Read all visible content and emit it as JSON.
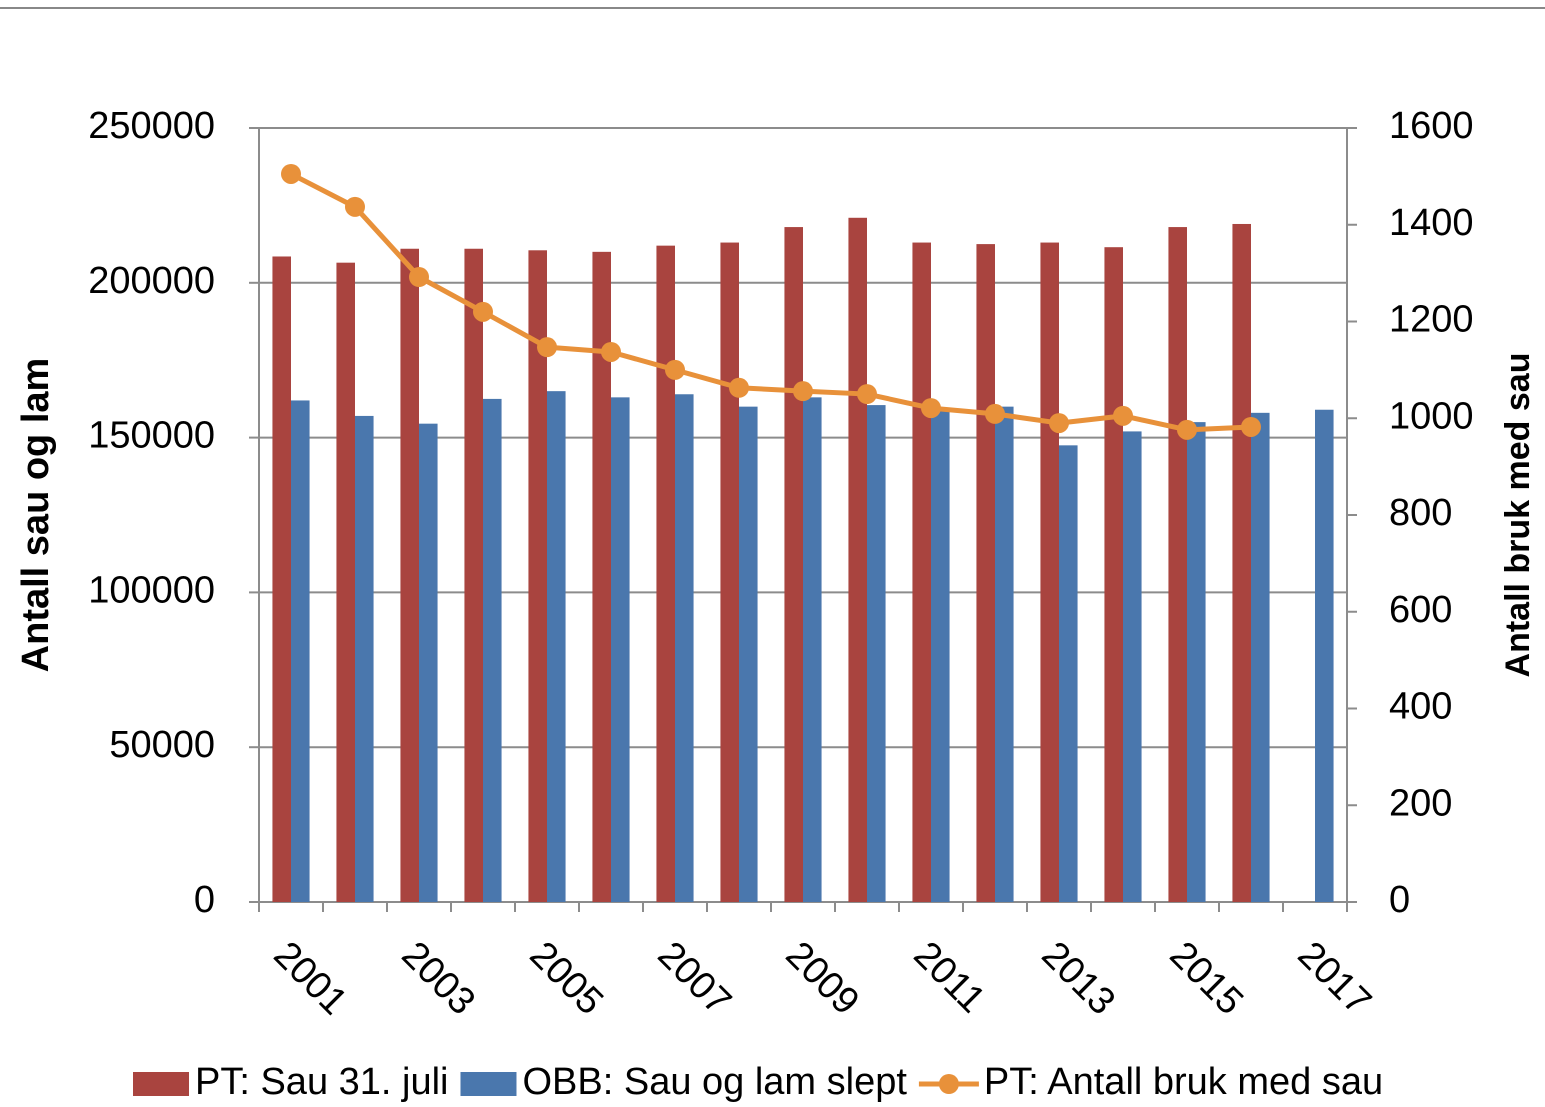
{
  "chart_data": {
    "type": "bar",
    "categories": [
      "2001",
      null,
      "2003",
      null,
      "2005",
      null,
      "2007",
      null,
      "2009",
      null,
      "2011",
      null,
      "2013",
      null,
      "2015",
      null,
      "2017"
    ],
    "y_label": "Antall sau og lam",
    "y2_label": "Antall bruk med sau",
    "ylim": [
      0,
      250000
    ],
    "yticks": [
      0,
      50000,
      100000,
      150000,
      200000,
      250000
    ],
    "y2lim": [
      0,
      1600
    ],
    "y2ticks": [
      0,
      200,
      400,
      600,
      800,
      1000,
      1200,
      1400,
      1600
    ],
    "grid": true,
    "legend": "bottom",
    "series": [
      {
        "name": "PT: Sau 31. juli",
        "type": "bar",
        "color": "#a9443f",
        "values": [
          208500,
          206500,
          211000,
          211000,
          210500,
          210000,
          212000,
          213000,
          218000,
          221000,
          213000,
          212500,
          213000,
          211500,
          218000,
          219000,
          null
        ]
      },
      {
        "name": "OBB: Sau og lam slept",
        "type": "bar",
        "color": "#4a77ad",
        "values": [
          162000,
          157000,
          154500,
          162500,
          165000,
          163000,
          164000,
          160000,
          163000,
          160500,
          159000,
          160000,
          147500,
          152000,
          155000,
          158000,
          159000
        ]
      },
      {
        "name": "PT: Antall bruk med sau",
        "type": "line",
        "axis": "y2",
        "color": "#e8913a",
        "values": [
          1505,
          1437,
          1292,
          1220,
          1147,
          1137,
          1100,
          1063,
          1056,
          1050,
          1021,
          1009,
          990,
          1005,
          976,
          982,
          null
        ]
      }
    ]
  }
}
